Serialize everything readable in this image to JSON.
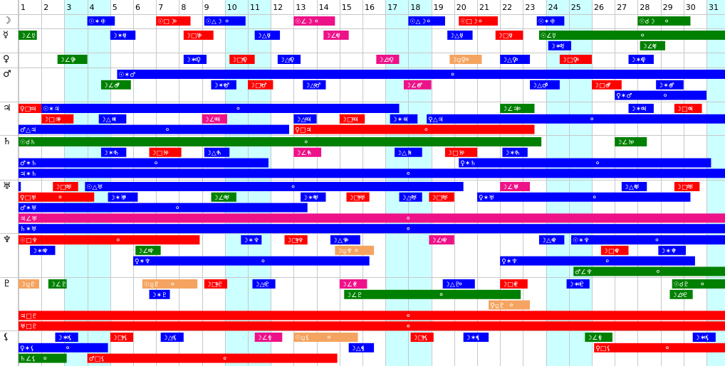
{
  "chart_data": {
    "type": "timeline",
    "title": "",
    "days": [
      "1",
      "2",
      "3",
      "4",
      "5",
      "6",
      "7",
      "8",
      "9",
      "10",
      "11",
      "12",
      "13",
      "14",
      "15",
      "16",
      "17",
      "18",
      "19",
      "20",
      "21",
      "22",
      "23",
      "24",
      "25",
      "26",
      "27",
      "28",
      "29",
      "30",
      "31"
    ],
    "x_unit": "day of month",
    "shaded_days": [
      3,
      4,
      10,
      11,
      17,
      18,
      24,
      25,
      31
    ],
    "colors": {
      "conjunction": "#008000",
      "sextile": "#0000ff",
      "square": "#ff0000",
      "trine": "#0000ff",
      "opposition": "#ff0000",
      "quintile": "#ee1289",
      "semisextile": "#008000",
      "sesquisquare": "#f4a460",
      "shade": "#ccffff"
    },
    "planets": [
      {
        "glyph": "☽",
        "name": "moon-row",
        "lanes": [
          [
            {
              "l": "☉✶☽",
              "s": 4,
              "e": 5.2,
              "c": "#0000ff"
            },
            {
              "l": "☉□☽",
              "s": 7,
              "e": 8.5,
              "c": "#ff0000"
            },
            {
              "l": "☉△☽",
              "s": 9.1,
              "e": 10.9,
              "c": "#0000ff"
            },
            {
              "l": "☉∠☽",
              "s": 13,
              "e": 14.8,
              "c": "#ee1289"
            },
            {
              "l": "☉△☽",
              "s": 18,
              "e": 19.6,
              "c": "#0000ff"
            },
            {
              "l": "☉□☽",
              "s": 20.2,
              "e": 21.9,
              "c": "#ff0000"
            },
            {
              "l": "☉✶☽",
              "s": 23.6,
              "e": 24.8,
              "c": "#0000ff"
            },
            {
              "l": "☉☌☽",
              "s": 28,
              "e": 30.3,
              "c": "#008000"
            }
          ]
        ]
      },
      {
        "glyph": "☿",
        "name": "mercury-row",
        "lanes": [
          [
            {
              "l": "☽∠☿",
              "s": 1,
              "e": 1.8,
              "c": "#008000"
            },
            {
              "l": "☽✶☿",
              "s": 5,
              "e": 6.1,
              "c": "#0000ff"
            },
            {
              "l": "☽□☿",
              "s": 8.2,
              "e": 9.5,
              "c": "#ff0000"
            },
            {
              "l": "☽△☿",
              "s": 11.3,
              "e": 12.4,
              "c": "#0000ff"
            },
            {
              "l": "☽∠☿",
              "s": 14.3,
              "e": 15.4,
              "c": "#ee1289"
            },
            {
              "l": "☽△☿",
              "s": 19.7,
              "e": 20.8,
              "c": "#0000ff"
            },
            {
              "l": "☽□☿",
              "s": 21.8,
              "e": 23,
              "c": "#ff0000"
            },
            {
              "l": "☉∠☿",
              "s": 23.7,
              "e": 31.9,
              "c": "#008000"
            }
          ],
          [
            {
              "l": "☽✶☿",
              "s": 24.1,
              "e": 25.1,
              "c": "#0000ff"
            },
            {
              "l": "☽∠☿",
              "s": 28.1,
              "e": 29.2,
              "c": "#008000"
            }
          ]
        ]
      },
      {
        "glyph": "♀",
        "name": "venus-row",
        "lanes": [
          [
            {
              "l": "☽∠♀",
              "s": 2.7,
              "e": 4,
              "c": "#008000"
            },
            {
              "l": "☽✶♀",
              "s": 8.2,
              "e": 9.2,
              "c": "#0000ff"
            },
            {
              "l": "☽□♀",
              "s": 10.2,
              "e": 11.3,
              "c": "#ff0000"
            },
            {
              "l": "☽△♀",
              "s": 12.3,
              "e": 13.3,
              "c": "#0000ff"
            },
            {
              "l": "☽∠♀",
              "s": 16.6,
              "e": 17.6,
              "c": "#ee1289"
            },
            {
              "l": "☽⚼♀",
              "s": 19.8,
              "e": 21.2,
              "c": "#f4a460"
            },
            {
              "l": "☽△♀",
              "s": 22,
              "e": 23.3,
              "c": "#0000ff"
            },
            {
              "l": "☽□♀",
              "s": 24.6,
              "e": 26,
              "c": "#ff0000"
            },
            {
              "l": "☽✶♀",
              "s": 27.6,
              "e": 28.7,
              "c": "#0000ff"
            }
          ]
        ]
      },
      {
        "glyph": "♂",
        "name": "mars-row",
        "lanes": [
          [
            {
              "l": "☉✶♂",
              "s": 5.3,
              "e": 31.9,
              "c": "#0000ff"
            }
          ],
          [
            {
              "l": "☽∠♂",
              "s": 4.6,
              "e": 5.9,
              "c": "#008000"
            },
            {
              "l": "☽✶♂",
              "s": 9.4,
              "e": 10.5,
              "c": "#0000ff"
            },
            {
              "l": "☽□♂",
              "s": 11,
              "e": 12.1,
              "c": "#ff0000"
            },
            {
              "l": "☽△♂",
              "s": 13.4,
              "e": 14.4,
              "c": "#0000ff"
            },
            {
              "l": "☽∠♂",
              "s": 17.8,
              "e": 19,
              "c": "#ee1289"
            },
            {
              "l": "☽△♂",
              "s": 23.3,
              "e": 24.6,
              "c": "#0000ff"
            },
            {
              "l": "☽□♂",
              "s": 26,
              "e": 27.3,
              "c": "#ff0000"
            },
            {
              "l": "☽✶♂",
              "s": 28.8,
              "e": 30,
              "c": "#0000ff"
            }
          ],
          [
            {
              "l": "♀✶♂",
              "s": 27,
              "e": 31,
              "c": "#0000ff"
            }
          ]
        ]
      },
      {
        "glyph": "♃",
        "name": "jupiter-row",
        "lanes": [
          [
            {
              "l": "♀□♃",
              "s": 1,
              "e": 2,
              "c": "#ff0000"
            },
            {
              "l": "☉✶♃",
              "s": 2,
              "e": 17.6,
              "c": "#0000ff"
            },
            {
              "l": "☽∠♃",
              "s": 22,
              "e": 23.5,
              "c": "#008000"
            },
            {
              "l": "☽✶♃",
              "s": 27.6,
              "e": 28.7,
              "c": "#0000ff"
            },
            {
              "l": "☽□♃",
              "s": 29.6,
              "e": 30.8,
              "c": "#ff0000"
            }
          ],
          [
            {
              "l": "☽□♃",
              "s": 2,
              "e": 3.4,
              "c": "#ff0000"
            },
            {
              "l": "☽△♃",
              "s": 4.5,
              "e": 5.7,
              "c": "#0000ff"
            },
            {
              "l": "☽∠♃",
              "s": 9,
              "e": 10.1,
              "c": "#ee1289"
            },
            {
              "l": "☽△♃",
              "s": 13,
              "e": 14,
              "c": "#0000ff"
            },
            {
              "l": "☽□♃",
              "s": 15,
              "e": 16.1,
              "c": "#ff0000"
            },
            {
              "l": "☽✶♃",
              "s": 17.2,
              "e": 18.4,
              "c": "#0000ff"
            },
            {
              "l": "♀△♃",
              "s": 18.8,
              "e": 31.9,
              "c": "#0000ff"
            }
          ],
          [
            {
              "l": "♂△♃",
              "s": 1,
              "e": 12.8,
              "c": "#0000ff"
            },
            {
              "l": "♀□♃",
              "s": 13,
              "e": 23.5,
              "c": "#ff0000"
            }
          ]
        ]
      },
      {
        "glyph": "♄",
        "name": "saturn-row",
        "lanes": [
          [
            {
              "l": "☉☌♄",
              "s": 1,
              "e": 23.8,
              "c": "#008000"
            },
            {
              "l": "☽∠♄",
              "s": 27,
              "e": 28.4,
              "c": "#008000"
            }
          ],
          [
            {
              "l": "☽✶♄",
              "s": 4.6,
              "e": 5.7,
              "c": "#0000ff"
            },
            {
              "l": "☽□♄",
              "s": 6.7,
              "e": 8.1,
              "c": "#ff0000"
            },
            {
              "l": "☽△♄",
              "s": 9.1,
              "e": 10.2,
              "c": "#0000ff"
            },
            {
              "l": "☽∠♄",
              "s": 13,
              "e": 14.2,
              "c": "#ee1289"
            },
            {
              "l": "☽△♄",
              "s": 17.4,
              "e": 18.6,
              "c": "#0000ff"
            },
            {
              "l": "☽□♄",
              "s": 19.6,
              "e": 21,
              "c": "#ff0000"
            },
            {
              "l": "☽✶♄",
              "s": 22.1,
              "e": 23.2,
              "c": "#0000ff"
            }
          ],
          [
            {
              "l": "♂✶♄",
              "s": 1,
              "e": 11.9,
              "c": "#0000ff"
            },
            {
              "l": "♀✶♄",
              "s": 20.2,
              "e": 31.2,
              "c": "#0000ff"
            }
          ],
          [
            {
              "l": "♃✶♄",
              "s": 1,
              "e": 31.9,
              "c": "#0000ff"
            }
          ]
        ]
      },
      {
        "glyph": "♅",
        "name": "uranus-row",
        "lanes": [
          [
            {
              "l": "",
              "s": 1,
              "e": 1.1,
              "c": "#0000ff"
            },
            {
              "l": "☽□♅",
              "s": 2.5,
              "e": 3.6,
              "c": "#ff0000"
            },
            {
              "l": "☉△♅",
              "s": 3.9,
              "e": 20.4,
              "c": "#0000ff"
            },
            {
              "l": "☽∠♅",
              "s": 22,
              "e": 23.3,
              "c": "#ee1289"
            },
            {
              "l": "☽△♅",
              "s": 27.3,
              "e": 28.4,
              "c": "#0000ff"
            },
            {
              "l": "☽□♅",
              "s": 29.6,
              "e": 30.7,
              "c": "#ff0000"
            }
          ],
          [
            {
              "l": "♀□♅",
              "s": 1,
              "e": 4.3,
              "c": "#ff0000"
            },
            {
              "l": "☽✶♅",
              "s": 4.9,
              "e": 6.2,
              "c": "#0000ff"
            },
            {
              "l": "☽∠♅",
              "s": 9.4,
              "e": 10.5,
              "c": "#008000"
            },
            {
              "l": "☽✶♅",
              "s": 13.3,
              "e": 14.4,
              "c": "#0000ff"
            },
            {
              "l": "☽□♅",
              "s": 15.3,
              "e": 16.3,
              "c": "#ff0000"
            },
            {
              "l": "☽△♅",
              "s": 17.6,
              "e": 18.6,
              "c": "#0000ff"
            },
            {
              "l": "☽□♅",
              "s": 18.9,
              "e": 20,
              "c": "#ff0000"
            },
            {
              "l": "♀✶♅",
              "s": 21,
              "e": 30.3,
              "c": "#0000ff"
            }
          ],
          [
            {
              "l": "♂✶♅",
              "s": 1,
              "e": 13.6,
              "c": "#0000ff"
            }
          ],
          [
            {
              "l": "♃∠♅",
              "s": 1,
              "e": 31.9,
              "c": "#ee1289"
            }
          ],
          [
            {
              "l": "♄✶♅",
              "s": 1,
              "e": 31.9,
              "c": "#0000ff"
            }
          ]
        ]
      },
      {
        "glyph": "♆",
        "name": "neptune-row",
        "lanes": [
          [
            {
              "l": "☉□♆",
              "s": 1,
              "e": 8.9,
              "c": "#ff0000"
            },
            {
              "l": "☽✶♆",
              "s": 10.7,
              "e": 11.6,
              "c": "#0000ff"
            },
            {
              "l": "☽□♆",
              "s": 12.6,
              "e": 13.6,
              "c": "#ff0000"
            },
            {
              "l": "☽△♆",
              "s": 14.6,
              "e": 15.9,
              "c": "#0000ff"
            },
            {
              "l": "☽∠♆",
              "s": 18.9,
              "e": 20,
              "c": "#ee1289"
            },
            {
              "l": "☽△♆",
              "s": 23.7,
              "e": 24.8,
              "c": "#0000ff"
            },
            {
              "l": "☉✶♆",
              "s": 25.1,
              "e": 31.9,
              "c": "#0000ff"
            }
          ],
          [
            {
              "l": "☽✶♆",
              "s": 1.5,
              "e": 2.6,
              "c": "#0000ff"
            },
            {
              "l": "☽∠♆",
              "s": 6.1,
              "e": 7.2,
              "c": "#008000"
            },
            {
              "l": "☽⚼♆",
              "s": 14.8,
              "e": 16.5,
              "c": "#f4a460"
            },
            {
              "l": "☽□♆",
              "s": 26.4,
              "e": 27.6,
              "c": "#ff0000"
            },
            {
              "l": "☽✶♆",
              "s": 28.9,
              "e": 30.1,
              "c": "#0000ff"
            }
          ],
          [
            {
              "l": "♀✶♆",
              "s": 6,
              "e": 16.3,
              "c": "#0000ff"
            },
            {
              "l": "♀✶♆",
              "s": 22,
              "e": 30.5,
              "c": "#0000ff"
            }
          ],
          [
            {
              "l": "♂∠♆",
              "s": 25.2,
              "e": 31.9,
              "c": "#008000"
            }
          ]
        ]
      },
      {
        "glyph": "♇",
        "name": "pluto-row",
        "lanes": [
          [
            {
              "l": "☽⚼♇",
              "s": 1,
              "e": 1.9,
              "c": "#f4a460"
            },
            {
              "l": "☽∠♇",
              "s": 2.3,
              "e": 3.1,
              "c": "#008000"
            },
            {
              "l": "☉⚼♇",
              "s": 6.4,
              "e": 8.8,
              "c": "#f4a460"
            },
            {
              "l": "☽□♇",
              "s": 9.1,
              "e": 10.1,
              "c": "#ff0000"
            },
            {
              "l": "☽△♇",
              "s": 11.2,
              "e": 12.2,
              "c": "#0000ff"
            },
            {
              "l": "☽∠♇",
              "s": 15,
              "e": 16.2,
              "c": "#ee1289"
            },
            {
              "l": "☽△♇",
              "s": 19.5,
              "e": 20.9,
              "c": "#0000ff"
            },
            {
              "l": "☽□♇",
              "s": 22,
              "e": 23.2,
              "c": "#ff0000"
            },
            {
              "l": "☽✶♇",
              "s": 24.9,
              "e": 25.9,
              "c": "#0000ff"
            },
            {
              "l": "☉☌♇",
              "s": 29.5,
              "e": 31.9,
              "c": "#008000"
            }
          ],
          [
            {
              "l": "☽✶♇",
              "s": 6.7,
              "e": 7.6,
              "c": "#0000ff"
            },
            {
              "l": "☽∠♇",
              "s": 15.2,
              "e": 22.9,
              "c": "#008000"
            },
            {
              "l": "☽∠♇",
              "s": 29.4,
              "e": 30.4,
              "c": "#008000"
            }
          ],
          [
            {
              "l": "♀⚼♇",
              "s": 21.5,
              "e": 23.3,
              "c": "#f4a460"
            }
          ],
          [
            {
              "l": "♃□♇",
              "s": 1,
              "e": 31.9,
              "c": "#ff0000"
            }
          ],
          [
            {
              "l": "♅□♇",
              "s": 1,
              "e": 31.9,
              "c": "#ff0000"
            }
          ]
        ]
      },
      {
        "glyph": "⚸",
        "name": "lilith-row",
        "lanes": [
          [
            {
              "l": "☽✶⚸",
              "s": 2.6,
              "e": 3.6,
              "c": "#0000ff"
            },
            {
              "l": "☽□⚸",
              "s": 5,
              "e": 6,
              "c": "#ff0000"
            },
            {
              "l": "☽△⚸",
              "s": 7.2,
              "e": 8.2,
              "c": "#0000ff"
            },
            {
              "l": "☽∠⚸",
              "s": 11.3,
              "e": 12.5,
              "c": "#ee1289"
            },
            {
              "l": "☉⚼⚸",
              "s": 13,
              "e": 15.8,
              "c": "#f4a460"
            },
            {
              "l": "☽□⚸",
              "s": 18.1,
              "e": 19.1,
              "c": "#ff0000"
            },
            {
              "l": "☽✶⚸",
              "s": 20.4,
              "e": 21.5,
              "c": "#0000ff"
            },
            {
              "l": "☽∠⚸",
              "s": 25.7,
              "e": 26.9,
              "c": "#008000"
            },
            {
              "l": "☽✶⚸",
              "s": 30.4,
              "e": 31.4,
              "c": "#0000ff"
            }
          ],
          [
            {
              "l": "♀✶⚸",
              "s": 1,
              "e": 4.9,
              "c": "#0000ff"
            },
            {
              "l": "☽△⚸",
              "s": 15.4,
              "e": 16.5,
              "c": "#0000ff"
            },
            {
              "l": "♀□⚸",
              "s": 26.1,
              "e": 31.9,
              "c": "#ff0000"
            }
          ],
          [
            {
              "l": "♄∠⚸",
              "s": 1,
              "e": 3.1,
              "c": "#008000"
            },
            {
              "l": "♂□⚸",
              "s": 4,
              "e": 14.9,
              "c": "#ff0000"
            }
          ]
        ]
      }
    ]
  }
}
